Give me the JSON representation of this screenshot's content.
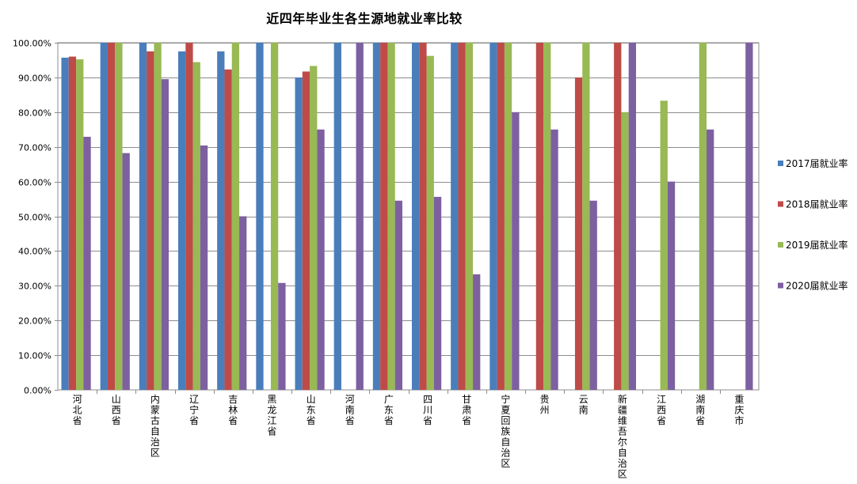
{
  "chart_data": {
    "type": "bar",
    "title": "近四年毕业生各生源地就业率比较",
    "xlabel": "",
    "ylabel": "",
    "ylim": [
      0,
      100
    ],
    "y_tick_labels": [
      "0.00%",
      "10.00%",
      "20.00%",
      "30.00%",
      "40.00%",
      "50.00%",
      "60.00%",
      "70.00%",
      "80.00%",
      "90.00%",
      "100.00%"
    ],
    "grid": true,
    "legend_position": "right",
    "categories": [
      "河北省",
      "山西省",
      "内蒙古自治区",
      "辽宁省",
      "吉林省",
      "黑龙江省",
      "山东省",
      "河南省",
      "广东省",
      "四川省",
      "甘肃省",
      "宁夏回族自治区",
      "贵州",
      "云南",
      "新疆维吾尔自治区",
      "江西省",
      "湖南省",
      "重庆市"
    ],
    "series": [
      {
        "name": "2017届就业率",
        "color": "#4a7ebb",
        "values": [
          95.7,
          100,
          100,
          97.5,
          97.5,
          100,
          90,
          100,
          100,
          100,
          100,
          100,
          0,
          0,
          0,
          0,
          0,
          0
        ]
      },
      {
        "name": "2018届就业率",
        "color": "#be4b48",
        "values": [
          96,
          100,
          97.5,
          100,
          92.3,
          0,
          91.7,
          0,
          100,
          100,
          100,
          100,
          100,
          90,
          100,
          0,
          0,
          0
        ]
      },
      {
        "name": "2019届就业率",
        "color": "#98b954",
        "values": [
          95.2,
          100,
          100,
          94.4,
          100,
          100,
          93.3,
          0,
          100,
          96.2,
          100,
          100,
          100,
          100,
          80,
          83.3,
          100,
          0
        ]
      },
      {
        "name": "2020届就业率",
        "color": "#7d60a0",
        "values": [
          72.9,
          68.2,
          89.5,
          70.4,
          50,
          30.8,
          75,
          100,
          54.5,
          55.6,
          33.3,
          80,
          75,
          54.5,
          100,
          60,
          75,
          100
        ]
      }
    ]
  }
}
